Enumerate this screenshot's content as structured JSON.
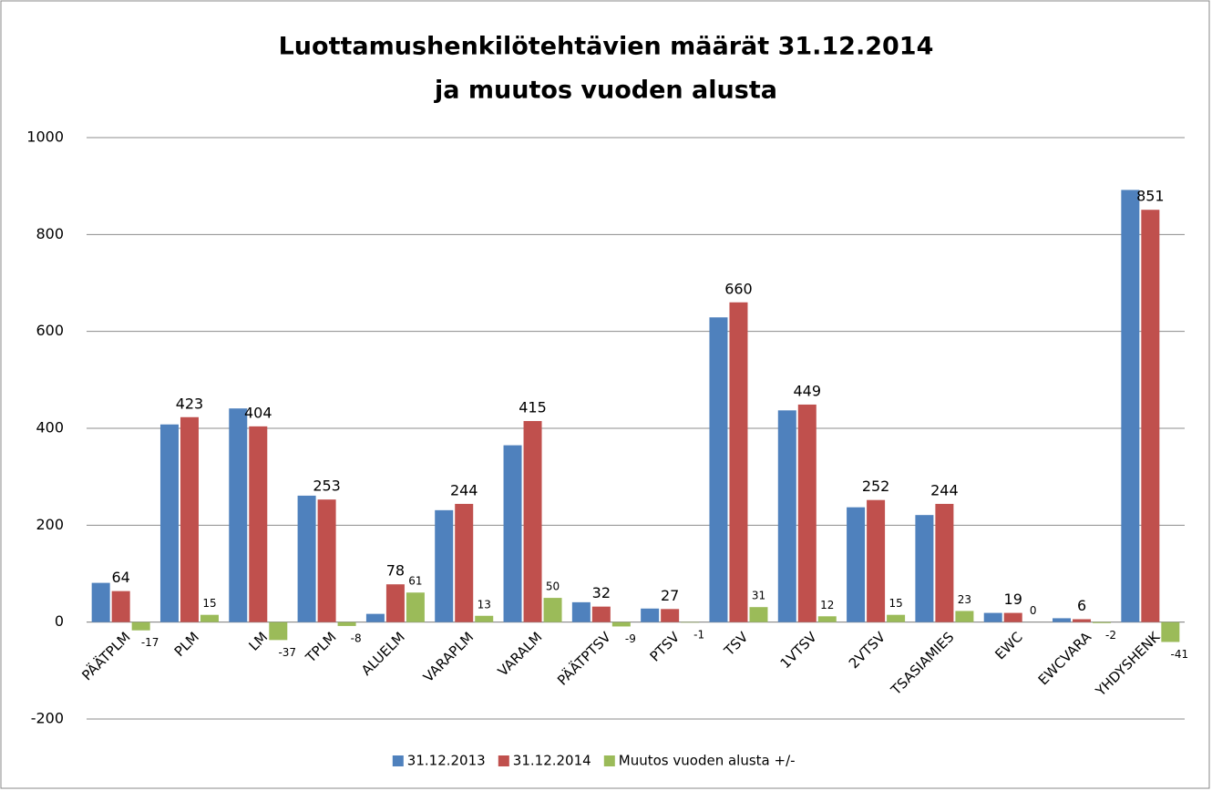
{
  "chart_data": {
    "type": "bar",
    "title": [
      "Luottamushenkilötehtävien  määrät 31.12.2014",
      "ja muutos vuoden alusta"
    ],
    "categories": [
      "PÄÄTPLM",
      "PLM",
      "LM",
      "TPLM",
      "ALUELM",
      "VARAPLM",
      "VARALM",
      "PÄÄTPTSV",
      "PTSV",
      "TSV",
      "1VTSV",
      "2VTSV",
      "TSASIAMIES",
      "EWC",
      "EWCVARA",
      "YHDYSHENK"
    ],
    "series": [
      {
        "name": "31.12.2013",
        "color": "#4f81bd",
        "values": [
          81,
          408,
          441,
          261,
          17,
          231,
          365,
          41,
          28,
          629,
          437,
          237,
          221,
          19,
          8,
          892
        ]
      },
      {
        "name": "31.12.2014",
        "color": "#c0504d",
        "values": [
          64,
          423,
          404,
          253,
          78,
          244,
          415,
          32,
          27,
          660,
          449,
          252,
          244,
          19,
          6,
          851
        ]
      },
      {
        "name": "Muutos vuoden alusta +/-",
        "color": "#9bbb59",
        "values": [
          -17,
          15,
          -37,
          -8,
          61,
          13,
          50,
          -9,
          -1,
          31,
          12,
          15,
          23,
          0,
          -2,
          -41
        ]
      }
    ],
    "ylim": [
      -200,
      1000
    ],
    "yticks": [
      -200,
      0,
      200,
      400,
      600,
      800,
      1000
    ],
    "grid": true,
    "legend": "bottom"
  }
}
